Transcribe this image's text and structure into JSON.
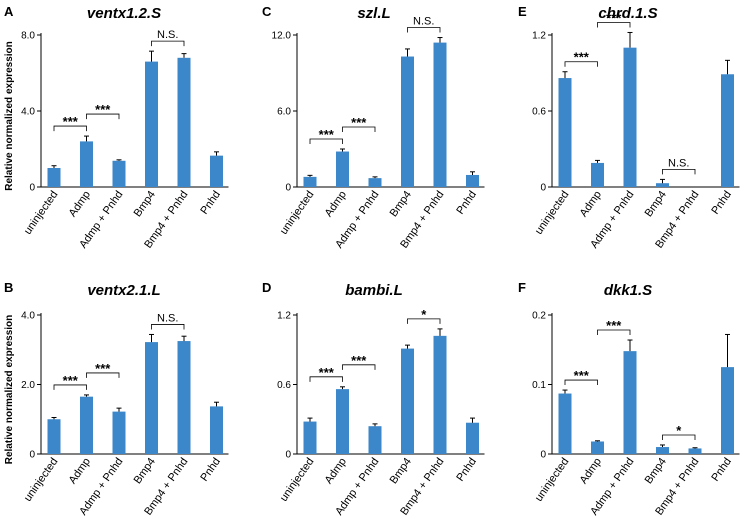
{
  "ylabel": "Relative normalized expression",
  "categories": [
    "uninjected",
    "Admp",
    "Admp + Pnhd",
    "Bmp4",
    "Bmp4 + Pnhd",
    "Pnhd"
  ],
  "chart_data": [
    {
      "type": "bar",
      "panel": "A",
      "title": "ventx1.2.S",
      "ylim": [
        0,
        8.0
      ],
      "yticks": [
        "0",
        "4.0",
        "8.0"
      ],
      "ytick_values": [
        0,
        4,
        8
      ],
      "values": [
        1.0,
        2.4,
        1.38,
        6.6,
        6.8,
        1.65
      ],
      "errors": [
        0.12,
        0.28,
        0.05,
        0.55,
        0.22,
        0.2
      ],
      "significance": [
        {
          "from": 0,
          "to": 1,
          "label": "***"
        },
        {
          "from": 1,
          "to": 2,
          "label": "***"
        },
        {
          "from": 3,
          "to": 4,
          "label": "N.S."
        }
      ]
    },
    {
      "type": "bar",
      "panel": "C",
      "title": "szl.L",
      "ylim": [
        0,
        12.0
      ],
      "yticks": [
        "0",
        "6.0",
        "12.0"
      ],
      "ytick_values": [
        0,
        6,
        12
      ],
      "values": [
        0.8,
        2.8,
        0.7,
        10.3,
        11.4,
        0.95
      ],
      "errors": [
        0.12,
        0.2,
        0.1,
        0.6,
        0.4,
        0.25
      ],
      "significance": [
        {
          "from": 0,
          "to": 1,
          "label": "***"
        },
        {
          "from": 1,
          "to": 2,
          "label": "***"
        },
        {
          "from": 3,
          "to": 4,
          "label": "N.S."
        }
      ]
    },
    {
      "type": "bar",
      "panel": "E",
      "title": "chrd.1.S",
      "ylim": [
        0,
        1.2
      ],
      "yticks": [
        "0",
        "0.6",
        "1.2"
      ],
      "ytick_values": [
        0,
        0.6,
        1.2
      ],
      "values": [
        0.86,
        0.19,
        1.1,
        0.03,
        0.0,
        0.89
      ],
      "errors": [
        0.05,
        0.02,
        0.12,
        0.03,
        0.0,
        0.11
      ],
      "significance": [
        {
          "from": 0,
          "to": 1,
          "label": "***"
        },
        {
          "from": 1,
          "to": 2,
          "label": "***"
        },
        {
          "from": 3,
          "to": 4,
          "label": "N.S."
        }
      ]
    },
    {
      "type": "bar",
      "panel": "B",
      "title": "ventx2.1.L",
      "ylim": [
        0,
        4.0
      ],
      "yticks": [
        "0",
        "2.0",
        "4.0"
      ],
      "ytick_values": [
        0,
        2,
        4
      ],
      "values": [
        1.0,
        1.65,
        1.22,
        3.22,
        3.25,
        1.37
      ],
      "errors": [
        0.05,
        0.05,
        0.1,
        0.22,
        0.14,
        0.12
      ],
      "significance": [
        {
          "from": 0,
          "to": 1,
          "label": "***"
        },
        {
          "from": 1,
          "to": 2,
          "label": "***"
        },
        {
          "from": 3,
          "to": 4,
          "label": "N.S."
        }
      ]
    },
    {
      "type": "bar",
      "panel": "D",
      "title": "bambi.L",
      "ylim": [
        0,
        1.2
      ],
      "yticks": [
        "0",
        "0.6",
        "1.2"
      ],
      "ytick_values": [
        0,
        0.6,
        1.2
      ],
      "values": [
        0.28,
        0.56,
        0.24,
        0.91,
        1.02,
        0.27
      ],
      "errors": [
        0.03,
        0.02,
        0.02,
        0.03,
        0.06,
        0.04
      ],
      "significance": [
        {
          "from": 0,
          "to": 1,
          "label": "***"
        },
        {
          "from": 1,
          "to": 2,
          "label": "***"
        },
        {
          "from": 3,
          "to": 4,
          "label": "*"
        }
      ]
    },
    {
      "type": "bar",
      "panel": "F",
      "title": "dkk1.S",
      "ylim": [
        0,
        0.2
      ],
      "yticks": [
        "0",
        "0.1",
        "0.2"
      ],
      "ytick_values": [
        0,
        0.1,
        0.2
      ],
      "values": [
        0.087,
        0.018,
        0.148,
        0.01,
        0.008,
        0.125
      ],
      "errors": [
        0.005,
        0.001,
        0.016,
        0.003,
        0.001,
        0.047
      ],
      "significance": [
        {
          "from": 0,
          "to": 1,
          "label": "***"
        },
        {
          "from": 1,
          "to": 2,
          "label": "***"
        },
        {
          "from": 3,
          "to": 4,
          "label": "*"
        }
      ]
    }
  ]
}
